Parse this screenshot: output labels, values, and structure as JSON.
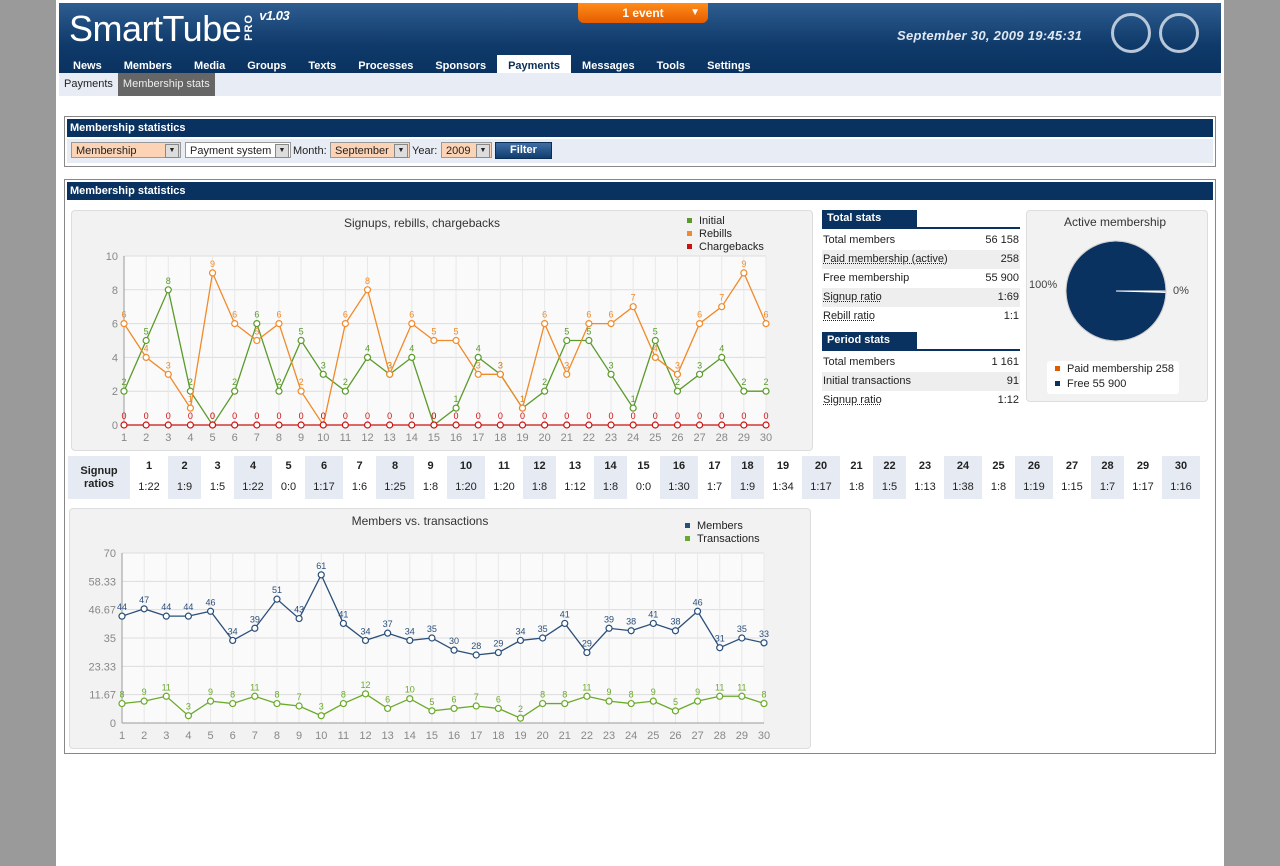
{
  "header": {
    "logo_text": "SmartTube",
    "logo_pro": "PRO",
    "version": "v1.03",
    "event_label": "1 event",
    "datetime": "September 30, 2009 19:45:31",
    "icons": [
      "support-icon",
      "user-icon"
    ]
  },
  "nav": {
    "items": [
      "News",
      "Members",
      "Media",
      "Groups",
      "Texts",
      "Processes",
      "Sponsors",
      "Payments",
      "Messages",
      "Tools",
      "Settings"
    ],
    "active": "Payments"
  },
  "subnav": {
    "items": [
      "Payments",
      "Membership stats"
    ],
    "active": "Membership stats"
  },
  "filter": {
    "title": "Membership statistics",
    "type_value": "Membership",
    "payment_value": "Payment system",
    "month_label": "Month:",
    "month_value": "September",
    "year_label": "Year:",
    "year_value": "2009",
    "button": "Filter"
  },
  "main": {
    "title": "Membership statistics"
  },
  "total_stats": {
    "title": "Total stats",
    "rows": [
      {
        "label": "Total members",
        "value": "56 158"
      },
      {
        "label": "Paid membership (active)",
        "value": "258"
      },
      {
        "label": "Free membership",
        "value": "55 900"
      },
      {
        "label": "Signup ratio",
        "value": "1:69"
      },
      {
        "label": "Rebill ratio",
        "value": "1:1"
      }
    ]
  },
  "period_stats": {
    "title": "Period stats",
    "rows": [
      {
        "label": "Total members",
        "value": "1 161"
      },
      {
        "label": "Initial transactions",
        "value": "91"
      },
      {
        "label": "Signup ratio",
        "value": "1:12"
      }
    ]
  },
  "ratios": {
    "label": "Signup ratios",
    "items": [
      {
        "day": "1",
        "ratio": "1:22"
      },
      {
        "day": "2",
        "ratio": "1:9"
      },
      {
        "day": "3",
        "ratio": "1:5"
      },
      {
        "day": "4",
        "ratio": "1:22"
      },
      {
        "day": "5",
        "ratio": "0:0"
      },
      {
        "day": "6",
        "ratio": "1:17"
      },
      {
        "day": "7",
        "ratio": "1:6"
      },
      {
        "day": "8",
        "ratio": "1:25"
      },
      {
        "day": "9",
        "ratio": "1:8"
      },
      {
        "day": "10",
        "ratio": "1:20"
      },
      {
        "day": "11",
        "ratio": "1:20"
      },
      {
        "day": "12",
        "ratio": "1:8"
      },
      {
        "day": "13",
        "ratio": "1:12"
      },
      {
        "day": "14",
        "ratio": "1:8"
      },
      {
        "day": "15",
        "ratio": "0:0"
      },
      {
        "day": "16",
        "ratio": "1:30"
      },
      {
        "day": "17",
        "ratio": "1:7"
      },
      {
        "day": "18",
        "ratio": "1:9"
      },
      {
        "day": "19",
        "ratio": "1:34"
      },
      {
        "day": "20",
        "ratio": "1:17"
      },
      {
        "day": "21",
        "ratio": "1:8"
      },
      {
        "day": "22",
        "ratio": "1:5"
      },
      {
        "day": "23",
        "ratio": "1:13"
      },
      {
        "day": "24",
        "ratio": "1:38"
      },
      {
        "day": "25",
        "ratio": "1:8"
      },
      {
        "day": "26",
        "ratio": "1:19"
      },
      {
        "day": "27",
        "ratio": "1:15"
      },
      {
        "day": "28",
        "ratio": "1:7"
      },
      {
        "day": "29",
        "ratio": "1:17"
      },
      {
        "day": "30",
        "ratio": "1:16"
      }
    ]
  },
  "colors": {
    "navy": "#0a3260",
    "initial": "#5a9a2a",
    "rebills": "#f08a2a",
    "chargebacks": "#cc1111",
    "members": "#2a4f7a",
    "transactions": "#6aaa2a",
    "paid": "#e05a00"
  },
  "chart_data": [
    {
      "type": "line",
      "title": "Signups, rebills, chargebacks",
      "x": [
        1,
        2,
        3,
        4,
        5,
        6,
        7,
        8,
        9,
        10,
        11,
        12,
        13,
        14,
        15,
        16,
        17,
        18,
        19,
        20,
        21,
        22,
        23,
        24,
        25,
        26,
        27,
        28,
        29,
        30
      ],
      "ylim": [
        0,
        10
      ],
      "yticks": [
        0,
        2,
        4,
        6,
        8,
        10
      ],
      "grid": true,
      "legend": "top-right",
      "series": [
        {
          "name": "Initial",
          "values": [
            2,
            5,
            8,
            2,
            0,
            2,
            6,
            2,
            5,
            3,
            2,
            4,
            3,
            4,
            0,
            1,
            4,
            3,
            1,
            2,
            5,
            5,
            3,
            1,
            5,
            2,
            3,
            4,
            2,
            2
          ]
        },
        {
          "name": "Rebills",
          "values": [
            6,
            4,
            3,
            1,
            9,
            6,
            5,
            6,
            2,
            0,
            6,
            8,
            3,
            6,
            5,
            5,
            3,
            3,
            1,
            6,
            3,
            6,
            6,
            7,
            4,
            3,
            6,
            7,
            9,
            6
          ]
        },
        {
          "name": "Chargebacks",
          "values": [
            0,
            0,
            0,
            0,
            0,
            0,
            0,
            0,
            0,
            0,
            0,
            0,
            0,
            0,
            0,
            0,
            0,
            0,
            0,
            0,
            0,
            0,
            0,
            0,
            0,
            0,
            0,
            0,
            0,
            0
          ]
        }
      ]
    },
    {
      "type": "pie",
      "title": "Active membership",
      "slices": [
        {
          "name": "Paid membership",
          "value": 258,
          "label": "0%"
        },
        {
          "name": "Free",
          "value": 55900,
          "label": "100%"
        }
      ],
      "legend": [
        "Paid membership 258",
        "Free 55 900"
      ]
    },
    {
      "type": "line",
      "title": "Members vs. transactions",
      "x": [
        1,
        2,
        3,
        4,
        5,
        6,
        7,
        8,
        9,
        10,
        11,
        12,
        13,
        14,
        15,
        16,
        17,
        18,
        19,
        20,
        21,
        22,
        23,
        24,
        25,
        26,
        27,
        28,
        29,
        30
      ],
      "ylim": [
        0,
        70
      ],
      "yticks": [
        "0",
        "11.67",
        "23.33",
        "35",
        "46.67",
        "58.33",
        "70"
      ],
      "grid": true,
      "legend": "top-right",
      "series": [
        {
          "name": "Members",
          "values": [
            44,
            47,
            44,
            44,
            46,
            34,
            39,
            51,
            43,
            61,
            41,
            34,
            37,
            34,
            35,
            30,
            28,
            29,
            34,
            35,
            41,
            29,
            39,
            38,
            41,
            38,
            46,
            31,
            35,
            33
          ]
        },
        {
          "name": "Transactions",
          "values": [
            8,
            9,
            11,
            3,
            9,
            8,
            11,
            8,
            7,
            3,
            8,
            12,
            6,
            10,
            5,
            6,
            7,
            6,
            2,
            8,
            8,
            11,
            9,
            8,
            9,
            5,
            9,
            11,
            11,
            8
          ]
        }
      ]
    }
  ]
}
